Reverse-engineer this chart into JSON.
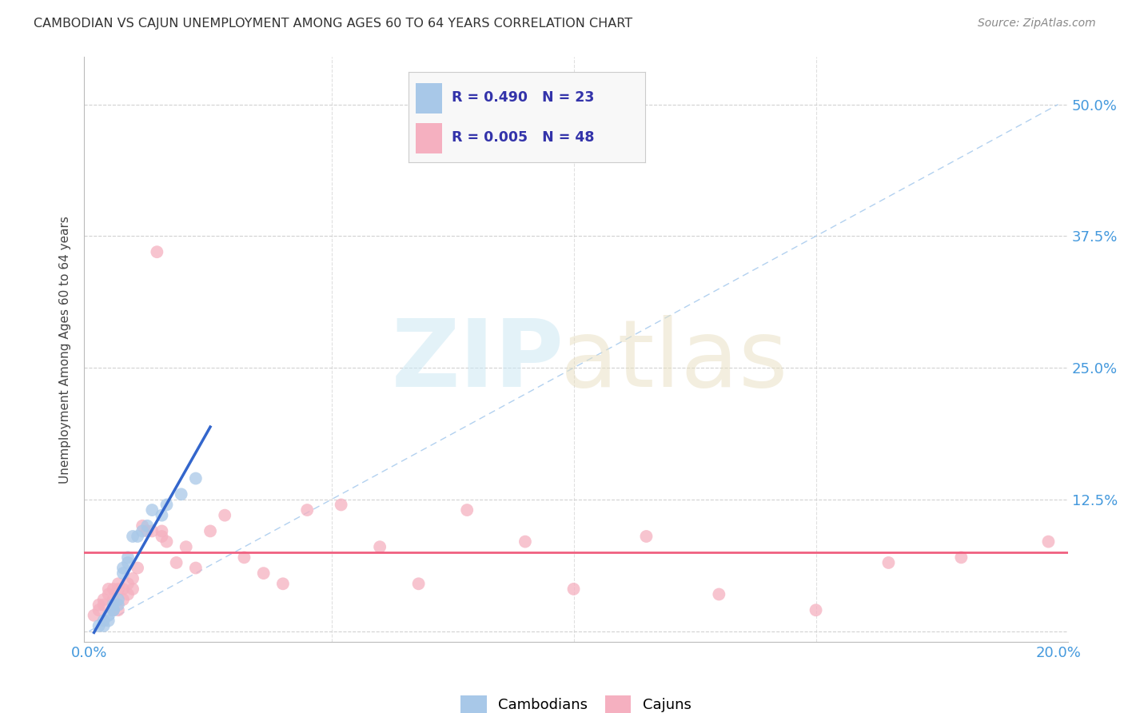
{
  "title": "CAMBODIAN VS CAJUN UNEMPLOYMENT AMONG AGES 60 TO 64 YEARS CORRELATION CHART",
  "source": "Source: ZipAtlas.com",
  "ylabel": "Unemployment Among Ages 60 to 64 years",
  "xlim": [
    -0.001,
    0.202
  ],
  "ylim": [
    -0.01,
    0.545
  ],
  "background_color": "#ffffff",
  "grid_color": "#cccccc",
  "cambodian_color": "#a8c8e8",
  "cajun_color": "#f5b0c0",
  "cambodian_line_color": "#3366cc",
  "cajun_line_color": "#f06080",
  "ref_line_color": "#aaccee",
  "R_cambodian": 0.49,
  "N_cambodian": 23,
  "R_cajun": 0.005,
  "N_cajun": 48,
  "tick_color": "#4499dd",
  "title_color": "#333333",
  "ylabel_color": "#444444",
  "source_color": "#888888",
  "watermark_zip_color": "#cce8f4",
  "watermark_atlas_color": "#e8dfc0",
  "legend_bg": "#f8f8f8",
  "legend_border": "#cccccc",
  "legend_text_color": "#3333aa",
  "cambodian_x": [
    0.002,
    0.003,
    0.003,
    0.004,
    0.004,
    0.005,
    0.005,
    0.005,
    0.006,
    0.006,
    0.007,
    0.007,
    0.008,
    0.008,
    0.009,
    0.01,
    0.011,
    0.012,
    0.013,
    0.015,
    0.016,
    0.019,
    0.022
  ],
  "cambodian_y": [
    0.005,
    0.01,
    0.005,
    0.01,
    0.015,
    0.02,
    0.02,
    0.025,
    0.03,
    0.025,
    0.055,
    0.06,
    0.065,
    0.07,
    0.09,
    0.09,
    0.095,
    0.1,
    0.115,
    0.11,
    0.12,
    0.13,
    0.145
  ],
  "cajun_x": [
    0.001,
    0.002,
    0.002,
    0.003,
    0.003,
    0.004,
    0.004,
    0.005,
    0.005,
    0.005,
    0.006,
    0.006,
    0.006,
    0.007,
    0.007,
    0.008,
    0.008,
    0.009,
    0.009,
    0.01,
    0.011,
    0.012,
    0.013,
    0.014,
    0.015,
    0.015,
    0.016,
    0.018,
    0.02,
    0.022,
    0.025,
    0.028,
    0.032,
    0.036,
    0.04,
    0.045,
    0.052,
    0.06,
    0.068,
    0.078,
    0.09,
    0.1,
    0.115,
    0.13,
    0.15,
    0.165,
    0.18,
    0.198
  ],
  "cajun_y": [
    0.015,
    0.02,
    0.025,
    0.03,
    0.025,
    0.035,
    0.04,
    0.02,
    0.03,
    0.04,
    0.02,
    0.04,
    0.045,
    0.03,
    0.04,
    0.035,
    0.045,
    0.04,
    0.05,
    0.06,
    0.1,
    0.095,
    0.095,
    0.36,
    0.095,
    0.09,
    0.085,
    0.065,
    0.08,
    0.06,
    0.095,
    0.11,
    0.07,
    0.055,
    0.045,
    0.115,
    0.12,
    0.08,
    0.045,
    0.115,
    0.085,
    0.04,
    0.09,
    0.035,
    0.02,
    0.065,
    0.07,
    0.085
  ],
  "camb_line_x_start": 0.001,
  "camb_line_x_end": 0.025,
  "cajun_line_y": 0.075
}
